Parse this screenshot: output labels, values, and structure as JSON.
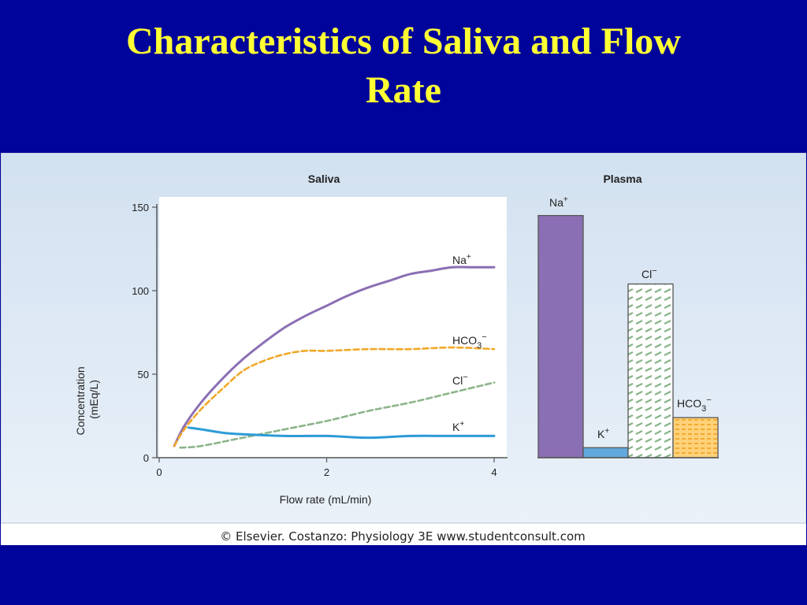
{
  "title": {
    "line1": "Characteristics of Saliva and Flow",
    "line2": "Rate"
  },
  "credit": "© Elsevier. Costanzo: Physiology 3E www.studentconsult.com",
  "colors": {
    "slide_bg": "#00049a",
    "title": "#ffff33",
    "figure_bg": "#d9e6f2",
    "na": "#8b6fb4",
    "k": "#2d9bd6",
    "cl": "#8db48a",
    "hco3": "#f0a829"
  },
  "chart_data": [
    {
      "type": "line",
      "title": "Saliva",
      "xlabel": "Flow rate (mL/min)",
      "ylabel": "Concentration (mEq/L)",
      "xlim": [
        0,
        4
      ],
      "ylim": [
        0,
        150
      ],
      "xticks": [
        "0",
        "2",
        "4"
      ],
      "yticks": [
        "0",
        "50",
        "100",
        "150"
      ],
      "grid": false,
      "series": [
        {
          "name": "Na+",
          "color": "#8b6fb4",
          "dash": "solid",
          "points": [
            [
              0.18,
              7
            ],
            [
              0.3,
              19
            ],
            [
              0.5,
              33
            ],
            [
              0.75,
              47
            ],
            [
              1.0,
              59
            ],
            [
              1.25,
              69
            ],
            [
              1.5,
              78
            ],
            [
              1.75,
              85
            ],
            [
              2.0,
              91
            ],
            [
              2.25,
              97
            ],
            [
              2.5,
              102
            ],
            [
              2.75,
              106
            ],
            [
              3.0,
              110
            ],
            [
              3.25,
              112
            ],
            [
              3.5,
              114
            ],
            [
              3.75,
              114
            ],
            [
              4.0,
              114
            ]
          ]
        },
        {
          "name": "HCO3−",
          "color": "#f0a829",
          "dash": "dashed",
          "points": [
            [
              0.18,
              7
            ],
            [
              0.3,
              17
            ],
            [
              0.5,
              29
            ],
            [
              0.75,
              41
            ],
            [
              1.0,
              52
            ],
            [
              1.25,
              58
            ],
            [
              1.5,
              62
            ],
            [
              1.75,
              64
            ],
            [
              2.0,
              64
            ],
            [
              2.5,
              65
            ],
            [
              3.0,
              65
            ],
            [
              3.5,
              66
            ],
            [
              4.0,
              65
            ]
          ]
        },
        {
          "name": "Cl−",
          "color": "#8db48a",
          "dash": "dashed",
          "points": [
            [
              0.25,
              6
            ],
            [
              0.5,
              7
            ],
            [
              1.0,
              12
            ],
            [
              1.5,
              17
            ],
            [
              2.0,
              22
            ],
            [
              2.5,
              28
            ],
            [
              3.0,
              33
            ],
            [
              3.5,
              39
            ],
            [
              4.0,
              45
            ]
          ]
        },
        {
          "name": "K+",
          "color": "#2d9bd6",
          "dash": "solid",
          "points": [
            [
              0.35,
              18
            ],
            [
              0.5,
              17
            ],
            [
              0.75,
              15
            ],
            [
              1.0,
              14
            ],
            [
              1.5,
              13
            ],
            [
              2.0,
              13
            ],
            [
              2.5,
              12
            ],
            [
              3.0,
              13
            ],
            [
              3.5,
              13
            ],
            [
              4.0,
              13
            ]
          ]
        }
      ]
    },
    {
      "type": "bar",
      "title": "Plasma",
      "ylim": [
        0,
        150
      ],
      "categories": [
        "Na+",
        "K+",
        "Cl−",
        "HCO3−"
      ],
      "values": [
        145,
        6,
        104,
        24
      ],
      "colors": [
        "#8b6fb4",
        "#62a8dc",
        "#ffffff",
        "#ffd276"
      ]
    }
  ]
}
